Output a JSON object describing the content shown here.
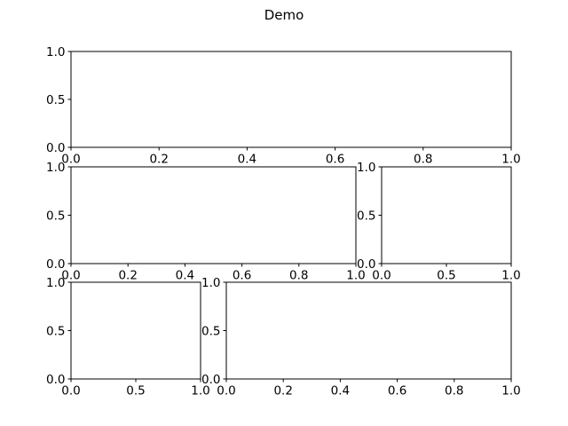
{
  "figure": {
    "title": "Demo"
  },
  "chart_data": [
    {
      "type": "line",
      "xlim": [
        0,
        1
      ],
      "ylim": [
        0,
        1
      ],
      "xticks": [
        "0.0",
        "0.2",
        "0.4",
        "0.6",
        "0.8",
        "1.0"
      ],
      "yticks": [
        "0.0",
        "0.5",
        "1.0"
      ],
      "grid": false,
      "series": []
    },
    {
      "type": "line",
      "xlim": [
        0,
        1
      ],
      "ylim": [
        0,
        1
      ],
      "xticks": [
        "0.0",
        "0.2",
        "0.4",
        "0.6",
        "0.8",
        "1.0"
      ],
      "yticks": [
        "0.0",
        "0.5",
        "1.0"
      ],
      "grid": false,
      "series": []
    },
    {
      "type": "line",
      "xlim": [
        0,
        1
      ],
      "ylim": [
        0,
        1
      ],
      "xticks": [
        "0.0",
        "0.5",
        "1.0"
      ],
      "yticks": [
        "0.0",
        "0.5",
        "1.0"
      ],
      "grid": false,
      "series": []
    },
    {
      "type": "line",
      "xlim": [
        0,
        1
      ],
      "ylim": [
        0,
        1
      ],
      "xticks": [
        "0.0",
        "0.5",
        "1.0"
      ],
      "yticks": [
        "0.0",
        "0.5",
        "1.0"
      ],
      "grid": false,
      "series": []
    },
    {
      "type": "line",
      "xlim": [
        0,
        1
      ],
      "ylim": [
        0,
        1
      ],
      "xticks": [
        "0.0",
        "0.2",
        "0.4",
        "0.6",
        "0.8",
        "1.0"
      ],
      "yticks": [
        "0.0",
        "0.5",
        "1.0"
      ],
      "grid": false,
      "series": []
    }
  ]
}
